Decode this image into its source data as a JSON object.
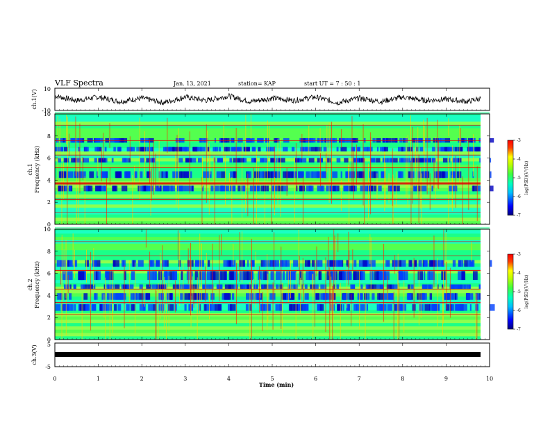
{
  "header": {
    "title": "VLF Spectra",
    "date": "Jan. 13, 2021",
    "station": "station= KAP",
    "start_ut": "start  UT =   7 : 50 : 1"
  },
  "chart_data": [
    {
      "type": "line",
      "panel": "ch1-waveform",
      "ylabel": "ch.1(V)",
      "ylim": [
        -10,
        10
      ],
      "yticks": [
        "10",
        "-10"
      ],
      "x": [
        0,
        0.5,
        1,
        1.5,
        2,
        2.5,
        3,
        3.5,
        4,
        4.5,
        5,
        5.5,
        6,
        6.5,
        7,
        7.5,
        8,
        8.5,
        9,
        9.5,
        9.8
      ],
      "y": [
        3,
        -1,
        2,
        -2,
        1,
        -3,
        2,
        -1,
        3,
        -2,
        1,
        -1,
        2,
        -3,
        1,
        -2,
        2,
        -1,
        0,
        -2,
        1
      ]
    },
    {
      "type": "heatmap",
      "panel": "ch1-spectrogram",
      "ylabel": "ch.1\nFrequency  (kHz)",
      "ylim": [
        0,
        10
      ],
      "yticks": [
        "0",
        "2",
        "4",
        "6",
        "8",
        "10"
      ],
      "colorbar": {
        "label": "log(PSD)(V²/Hz)",
        "ticks": [
          "-3",
          "-4",
          "-5",
          "-6",
          "-7"
        ],
        "range": [
          -7,
          -3
        ]
      }
    },
    {
      "type": "heatmap",
      "panel": "ch2-spectrogram",
      "ylabel": "ch.2\nFrequency  (kHz)",
      "ylim": [
        0,
        10
      ],
      "yticks": [
        "0",
        "2",
        "4",
        "6",
        "8",
        "10"
      ],
      "colorbar": {
        "label": "log(PSD)(V²/Hz)",
        "ticks": [
          "-3",
          "-4",
          "-5",
          "-6",
          "-7"
        ],
        "range": [
          -7,
          -3
        ]
      }
    },
    {
      "type": "line",
      "panel": "ch3-waveform",
      "ylabel": "ch.3(V)",
      "ylim": [
        -5,
        5
      ],
      "yticks": [
        "5",
        "-5"
      ],
      "x": [
        0,
        9.8
      ],
      "y": [
        -0.2,
        -0.2
      ]
    }
  ],
  "xaxis": {
    "label": "Time  (min)",
    "ticks": [
      "0",
      "1",
      "2",
      "3",
      "4",
      "5",
      "6",
      "7",
      "8",
      "9",
      "10"
    ],
    "xlim": [
      0,
      10
    ]
  },
  "colors": {
    "spectrum": [
      "#00007f",
      "#0000ff",
      "#0080ff",
      "#00ffff",
      "#00ff80",
      "#80ff00",
      "#ffff00",
      "#ff8000",
      "#ff0000"
    ]
  }
}
